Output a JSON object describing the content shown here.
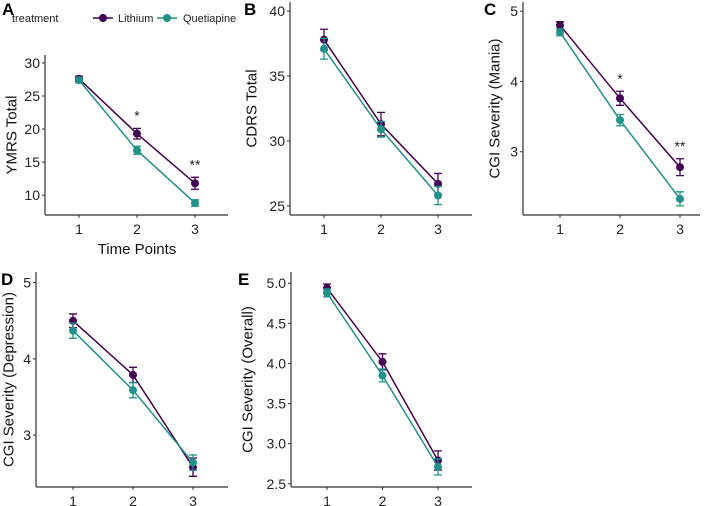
{
  "legend": {
    "title": "treatment",
    "entries": [
      "Lithium",
      "Quetiapine"
    ]
  },
  "colors": {
    "Lithium": "#440154",
    "Quetiapine": "#21918c"
  },
  "chart_data": [
    {
      "panel": "A",
      "type": "line",
      "ylabel": "YMRS Total",
      "xlabel": "Time Points",
      "x": [
        1,
        2,
        3
      ],
      "ylim": [
        7,
        31.2
      ],
      "yticks": [
        10,
        15,
        20,
        25,
        30
      ],
      "series": [
        {
          "name": "Lithium",
          "values": [
            27.6,
            19.3,
            11.8
          ],
          "errors": [
            0.4,
            0.8,
            0.9
          ]
        },
        {
          "name": "Quetiapine",
          "values": [
            27.4,
            16.8,
            8.8
          ],
          "errors": [
            0.4,
            0.6,
            0.5
          ]
        }
      ],
      "annotations": [
        {
          "x": 2,
          "text": "*"
        },
        {
          "x": 3,
          "text": "**"
        }
      ]
    },
    {
      "panel": "B",
      "type": "line",
      "ylabel": "CDRS Total",
      "xlabel": "",
      "x": [
        1,
        2,
        3
      ],
      "ylim": [
        24.3,
        40.7
      ],
      "yticks": [
        25,
        30,
        35,
        40
      ],
      "series": [
        {
          "name": "Lithium",
          "values": [
            37.8,
            31.3,
            26.7
          ],
          "errors": [
            0.8,
            0.9,
            0.8
          ]
        },
        {
          "name": "Quetiapine",
          "values": [
            37.1,
            30.9,
            25.8
          ],
          "errors": [
            0.8,
            0.6,
            0.7
          ]
        }
      ],
      "annotations": []
    },
    {
      "panel": "C",
      "type": "line",
      "ylabel": "CGI Severity (Mania)",
      "xlabel": "",
      "x": [
        1,
        2,
        3
      ],
      "ylim": [
        2.1,
        5.13
      ],
      "yticks": [
        3,
        4,
        5
      ],
      "series": [
        {
          "name": "Lithium",
          "values": [
            4.8,
            3.76,
            2.78
          ],
          "errors": [
            0.05,
            0.1,
            0.12
          ]
        },
        {
          "name": "Quetiapine",
          "values": [
            4.7,
            3.45,
            2.33
          ],
          "errors": [
            0.05,
            0.08,
            0.1
          ]
        }
      ],
      "annotations": [
        {
          "x": 2,
          "text": "*"
        },
        {
          "x": 3,
          "text": "**"
        }
      ]
    },
    {
      "panel": "D",
      "type": "line",
      "ylabel": "CGI Severity (Depression)",
      "xlabel": "",
      "x": [
        1,
        2,
        3
      ],
      "ylim": [
        2.32,
        5.14
      ],
      "yticks": [
        3,
        4,
        5
      ],
      "series": [
        {
          "name": "Lithium",
          "values": [
            4.5,
            3.79,
            2.58
          ],
          "errors": [
            0.09,
            0.1,
            0.12
          ]
        },
        {
          "name": "Quetiapine",
          "values": [
            4.37,
            3.59,
            2.64
          ],
          "errors": [
            0.1,
            0.1,
            0.1
          ]
        }
      ],
      "annotations": []
    },
    {
      "panel": "E",
      "type": "line",
      "ylabel": "CGI Severity (Overall)",
      "xlabel": "",
      "x": [
        1,
        2,
        3
      ],
      "ylim": [
        2.46,
        5.14
      ],
      "yticks": [
        "2.5",
        "3.0",
        "3.5",
        "4.0",
        "4.5",
        "5.0"
      ],
      "series": [
        {
          "name": "Lithium",
          "values": [
            4.94,
            4.02,
            2.79
          ],
          "errors": [
            0.05,
            0.1,
            0.12
          ]
        },
        {
          "name": "Quetiapine",
          "values": [
            4.88,
            3.85,
            2.71
          ],
          "errors": [
            0.05,
            0.08,
            0.1
          ]
        }
      ],
      "annotations": []
    }
  ]
}
